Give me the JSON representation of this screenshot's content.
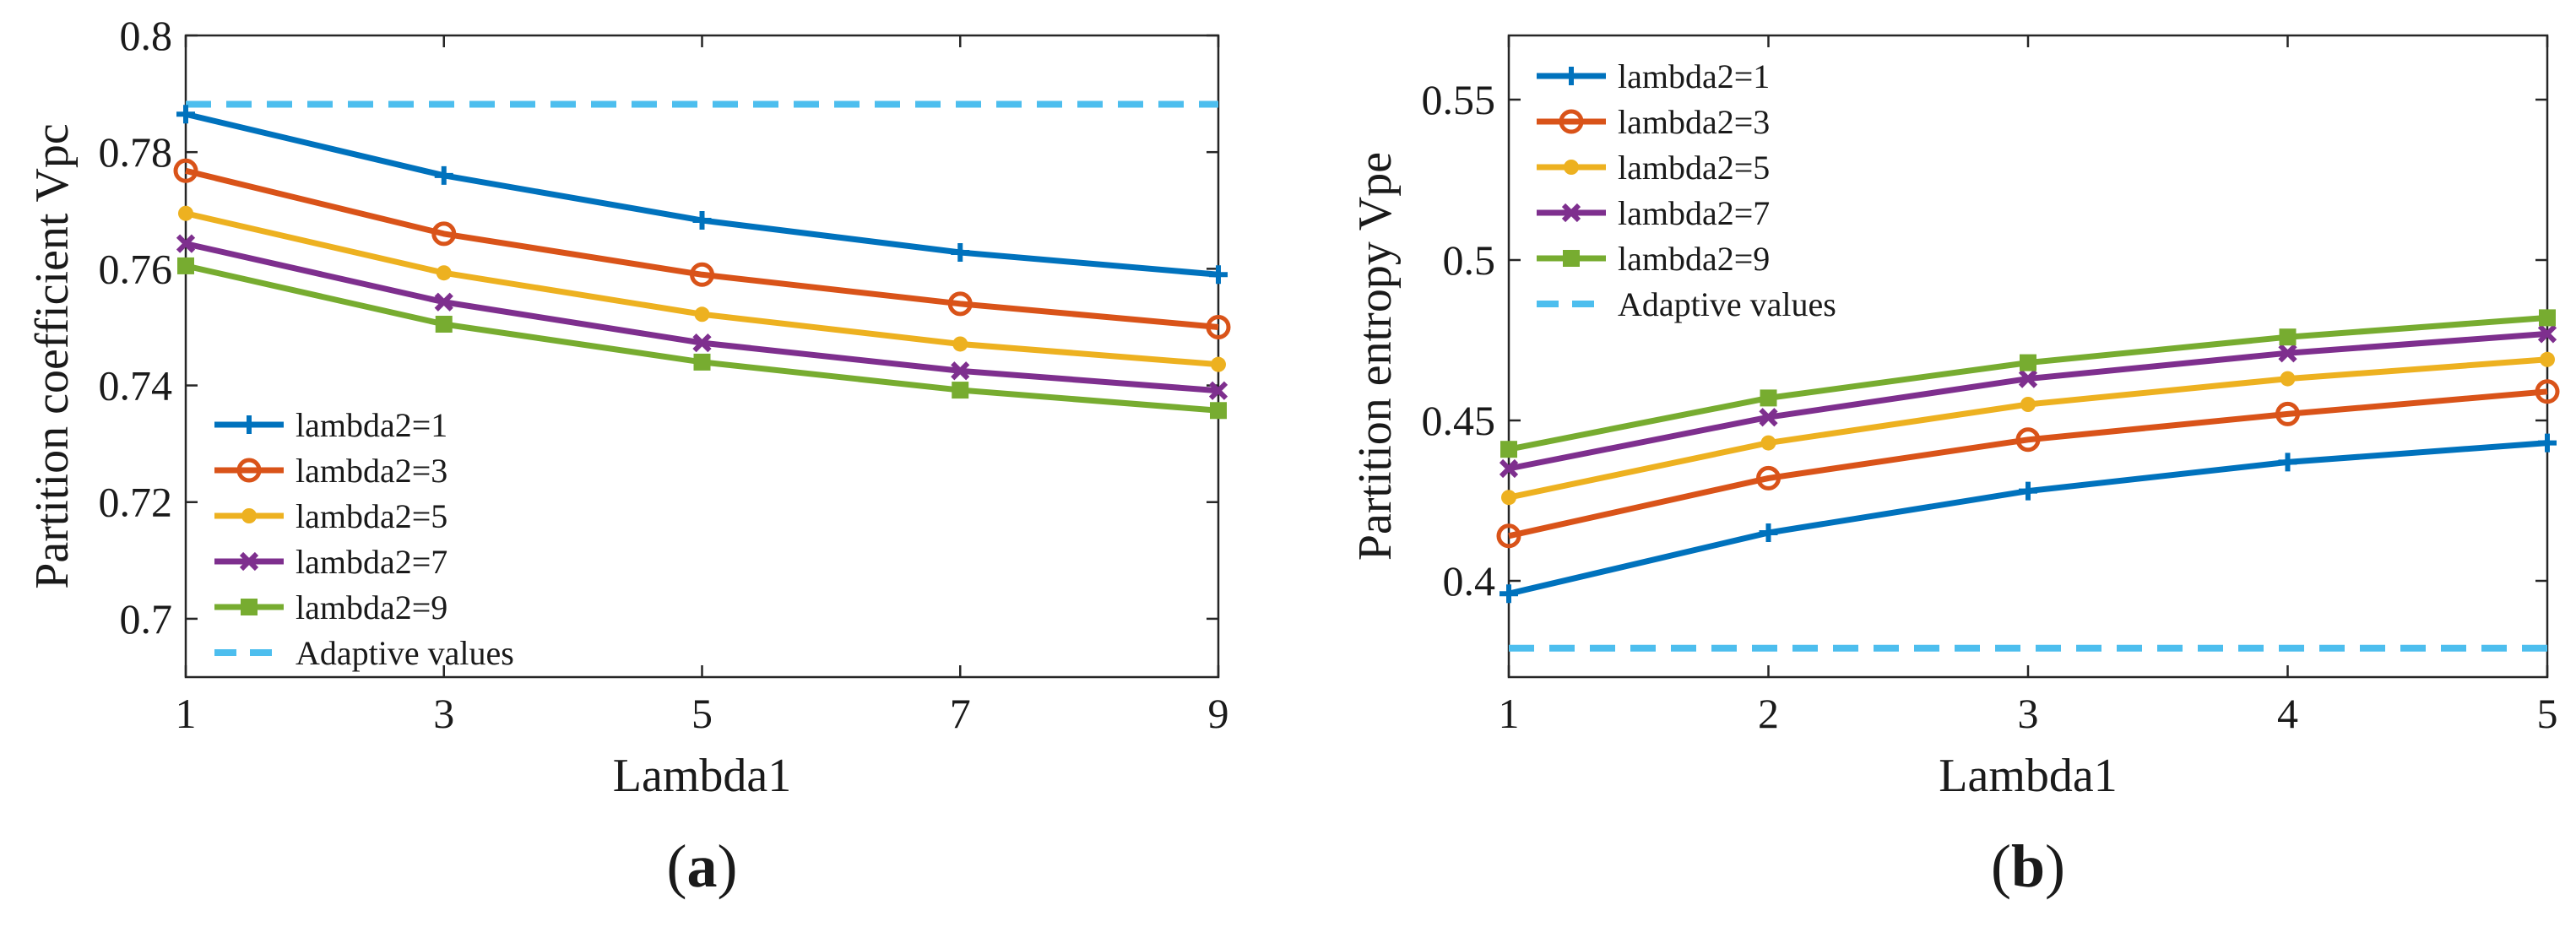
{
  "colors": {
    "s1": "#0072BD",
    "s3": "#D95319",
    "s5": "#EDB120",
    "s7": "#7E2F8E",
    "s9": "#77AC30",
    "adaptive": "#4DBEEE",
    "axis": "#262626"
  },
  "chart_data": [
    {
      "type": "line",
      "panel_label": "a",
      "title": "",
      "xlabel": "Lambda1",
      "ylabel": "Partition coefficient Vpc",
      "xlim": [
        1,
        9
      ],
      "ylim": [
        0.69,
        0.8
      ],
      "xticks": [
        1,
        3,
        5,
        7,
        9
      ],
      "xtick_labels": [
        "1",
        "3",
        "5",
        "7",
        "9"
      ],
      "yticks": [
        0.7,
        0.72,
        0.74,
        0.76,
        0.78,
        0.8
      ],
      "ytick_labels": [
        "0.7",
        "0.72",
        "0.74",
        "0.76",
        "0.78",
        "0.8"
      ],
      "legend_position": "lower-left",
      "x": [
        1,
        3,
        5,
        7,
        9
      ],
      "series": [
        {
          "name": "lambda2=1",
          "color_key": "s1",
          "marker": "plus",
          "values": [
            0.7865,
            0.776,
            0.7683,
            0.7628,
            0.759
          ]
        },
        {
          "name": "lambda2=3",
          "color_key": "s3",
          "marker": "circle",
          "values": [
            0.7768,
            0.766,
            0.759,
            0.754,
            0.75
          ]
        },
        {
          "name": "lambda2=5",
          "color_key": "s5",
          "marker": "dot",
          "values": [
            0.7695,
            0.7593,
            0.7522,
            0.7471,
            0.7436
          ]
        },
        {
          "name": "lambda2=7",
          "color_key": "s7",
          "marker": "x",
          "values": [
            0.7643,
            0.7543,
            0.7473,
            0.7425,
            0.7391
          ]
        },
        {
          "name": "lambda2=9",
          "color_key": "s9",
          "marker": "square",
          "values": [
            0.7605,
            0.7505,
            0.744,
            0.7392,
            0.7357
          ]
        }
      ],
      "reference": {
        "name": "Adaptive values",
        "color_key": "adaptive",
        "value": 0.7882
      }
    },
    {
      "type": "line",
      "panel_label": "b",
      "title": "",
      "xlabel": "Lambda1",
      "ylabel": "Partition entropy Vpe",
      "xlim": [
        1,
        5
      ],
      "ylim": [
        0.37,
        0.57
      ],
      "xticks": [
        1,
        2,
        3,
        4,
        5
      ],
      "xtick_labels": [
        "1",
        "2",
        "3",
        "4",
        "5"
      ],
      "yticks": [
        0.4,
        0.45,
        0.5,
        0.55
      ],
      "ytick_labels": [
        "0.4",
        "0.45",
        "0.5",
        "0.55"
      ],
      "legend_position": "top-left",
      "x": [
        1,
        2,
        3,
        4,
        5
      ],
      "series": [
        {
          "name": "lambda2=1",
          "color_key": "s1",
          "marker": "plus",
          "values": [
            0.396,
            0.415,
            0.428,
            0.437,
            0.443
          ]
        },
        {
          "name": "lambda2=3",
          "color_key": "s3",
          "marker": "circle",
          "values": [
            0.414,
            0.432,
            0.444,
            0.452,
            0.459
          ]
        },
        {
          "name": "lambda2=5",
          "color_key": "s5",
          "marker": "dot",
          "values": [
            0.426,
            0.443,
            0.455,
            0.463,
            0.469
          ]
        },
        {
          "name": "lambda2=7",
          "color_key": "s7",
          "marker": "x",
          "values": [
            0.435,
            0.451,
            0.463,
            0.471,
            0.477
          ]
        },
        {
          "name": "lambda2=9",
          "color_key": "s9",
          "marker": "square",
          "values": [
            0.441,
            0.457,
            0.468,
            0.476,
            0.482
          ]
        }
      ],
      "reference": {
        "name": "Adaptive values",
        "color_key": "adaptive",
        "value": 0.379
      }
    }
  ]
}
